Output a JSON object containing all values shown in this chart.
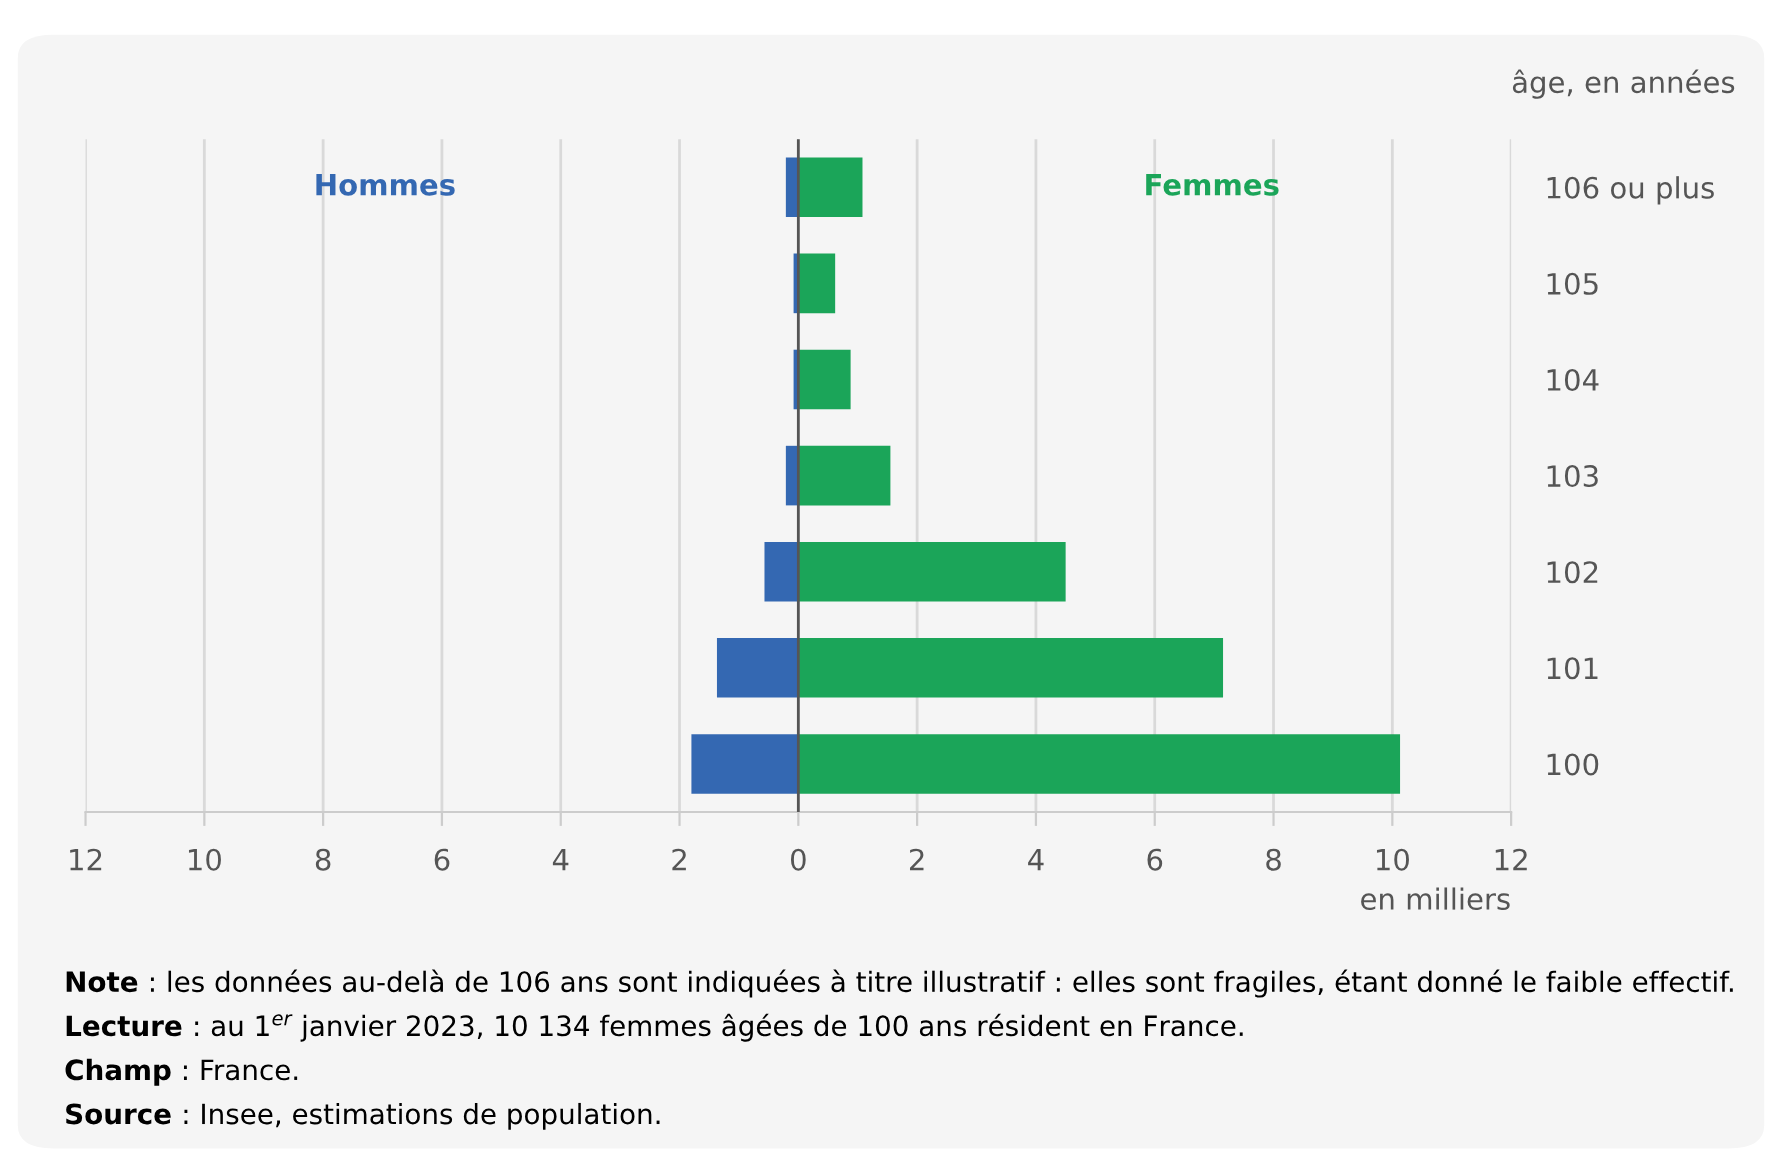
{
  "chart_data": {
    "type": "bar",
    "orientation": "horizontal",
    "stacked": true,
    "categories": [
      "106 ou plus",
      "105",
      "104",
      "103",
      "102",
      "101",
      "100"
    ],
    "series": [
      {
        "name": "Hommes",
        "color": "#3468b2",
        "values": [
          -0.21,
          -0.08,
          -0.08,
          -0.21,
          -0.57,
          -1.37,
          -1.8
        ]
      },
      {
        "name": "Femmes",
        "color": "#1ba559",
        "values": [
          1.08,
          0.62,
          0.88,
          1.55,
          4.5,
          7.15,
          10.13
        ]
      }
    ],
    "xlim": [
      -12,
      12
    ],
    "xticks": [
      {
        "value": -12,
        "label": "12"
      },
      {
        "value": -10,
        "label": "10"
      },
      {
        "value": -8,
        "label": "8"
      },
      {
        "value": -6,
        "label": "6"
      },
      {
        "value": -4,
        "label": "4"
      },
      {
        "value": -2,
        "label": "2"
      },
      0,
      2,
      4,
      6,
      8,
      10,
      12
    ],
    "xlabel": "en milliers",
    "ylabel": "âge, en années",
    "grid": "x",
    "legend": false,
    "annotations": [
      "Note : les données au-delà de 106 ans sont indiquées à titre illustratif : elles sont fragiles, étant donné le faible effectif.",
      "Lecture : au 1$^{er}$ janvier 2023, 10 134 femmes âgées de 100 ans résident en France.",
      "Champ : France.",
      "Source : Insee, estimations de population."
    ]
  }
}
